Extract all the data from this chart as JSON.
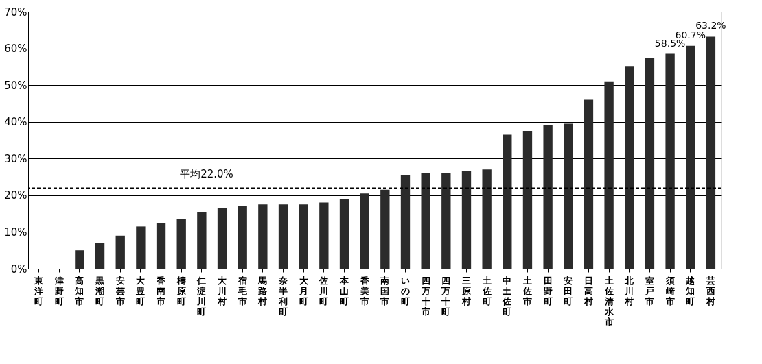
{
  "chart_data": {
    "type": "bar",
    "categories": [
      "東洋町",
      "津野町",
      "高知市",
      "黒潮町",
      "安芸市",
      "大豊町",
      "香南市",
      "檮原町",
      "仁淀川町",
      "大川村",
      "宿毛市",
      "馬路村",
      "奈半利町",
      "大月町",
      "佐川町",
      "本山町",
      "香美市",
      "南国市",
      "いの町",
      "四万十市",
      "四万十町",
      "三原村",
      "土佐町",
      "中土佐町",
      "土佐市",
      "田野町",
      "安田町",
      "日高村",
      "土佐清水市",
      "北川村",
      "室戸市",
      "須崎市",
      "越知町",
      "芸西村"
    ],
    "values": [
      0,
      0,
      5,
      7,
      9,
      11.5,
      12.5,
      13.5,
      15.5,
      16.5,
      17,
      17.5,
      17.5,
      17.5,
      18,
      19,
      20.5,
      21.5,
      25.5,
      26,
      26,
      26.5,
      27,
      36.5,
      37.5,
      39,
      39.5,
      46,
      51,
      55,
      57.5,
      58.5,
      60.7,
      63.2
    ],
    "value_labels": [
      null,
      null,
      null,
      null,
      null,
      null,
      null,
      null,
      null,
      null,
      null,
      null,
      null,
      null,
      null,
      null,
      null,
      null,
      null,
      null,
      null,
      null,
      null,
      null,
      null,
      null,
      null,
      null,
      null,
      null,
      null,
      "58.5%",
      "60.7%",
      "63.2%"
    ],
    "color": "#2b2b2b",
    "ylim": [
      0,
      70
    ],
    "yticks": [
      {
        "value": 0,
        "label": "0%"
      },
      {
        "value": 10,
        "label": "10%"
      },
      {
        "value": 20,
        "label": "20%"
      },
      {
        "value": 30,
        "label": "30%"
      },
      {
        "value": 40,
        "label": "40%"
      },
      {
        "value": 50,
        "label": "50%"
      },
      {
        "value": 60,
        "label": "60%"
      },
      {
        "value": 70,
        "label": "70%"
      }
    ],
    "grid": "y",
    "ref_lines": [
      {
        "axis": "y",
        "value": 22.0,
        "label": "平均22.0%",
        "color": "#000000",
        "line_style": "dashed"
      }
    ]
  }
}
